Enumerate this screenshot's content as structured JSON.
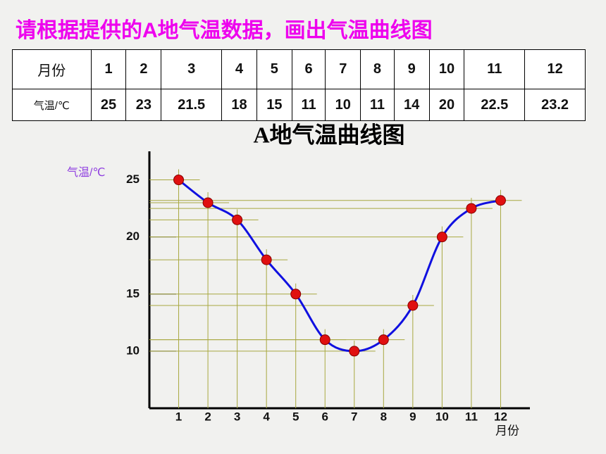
{
  "header": {
    "title": "请根据提供的A地气温数据，画出气温曲线图"
  },
  "table": {
    "rows": [
      [
        "月份",
        "1",
        "2",
        "3",
        "4",
        "5",
        "6",
        "7",
        "8",
        "9",
        "10",
        "11",
        "12"
      ],
      [
        "气温/℃",
        "25",
        "23",
        "21.5",
        "18",
        "15",
        "11",
        "10",
        "11",
        "14",
        "20",
        "22.5",
        "23.2"
      ]
    ]
  },
  "chart_data": {
    "type": "line",
    "title": "A地气温曲线图",
    "y_label": "气温/℃",
    "x_label": "月份",
    "x": [
      1,
      2,
      3,
      4,
      5,
      6,
      7,
      8,
      9,
      10,
      11,
      12
    ],
    "series": [
      {
        "values": [
          25,
          23,
          21.5,
          18,
          15,
          11,
          10,
          11,
          14,
          20,
          22.5,
          23.2
        ],
        "color": "#1010e0",
        "marker_color": "#e01010"
      }
    ],
    "xlim": [
      0,
      13
    ],
    "xticks": [
      1,
      2,
      3,
      4,
      5,
      6,
      7,
      8,
      9,
      10,
      11,
      12
    ],
    "ylim": [
      5,
      27.5
    ],
    "yticks": [
      10,
      15,
      20,
      25
    ],
    "guide_color": "#a8a840"
  }
}
